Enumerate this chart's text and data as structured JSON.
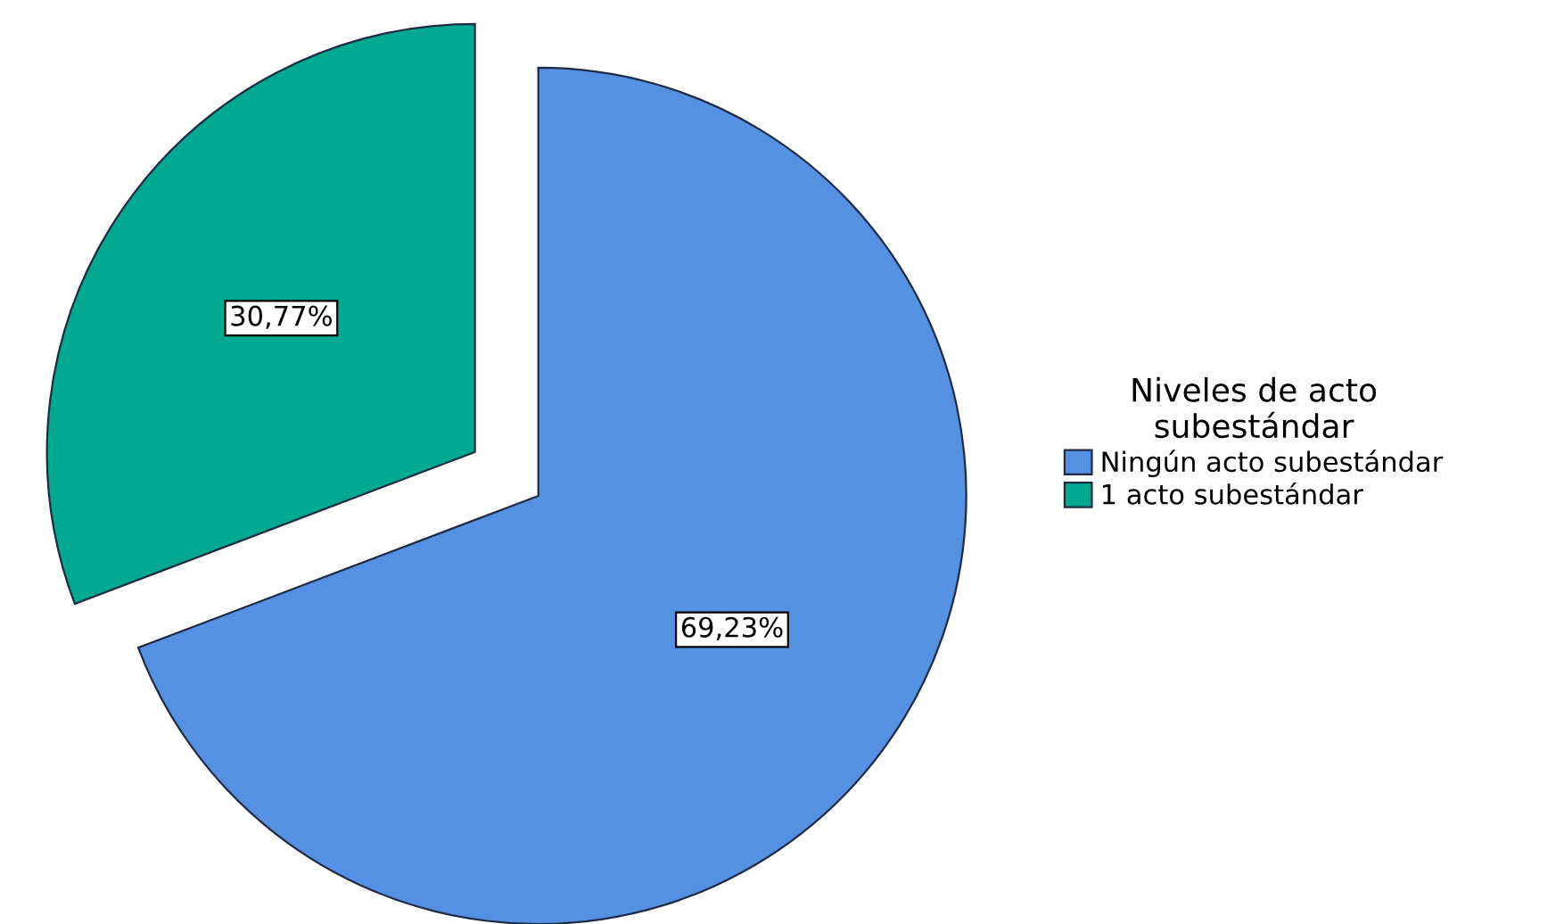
{
  "chart_data": {
    "type": "pie",
    "categories": [
      "Ningún acto subestándar",
      "1 acto subestándar"
    ],
    "values": [
      69.23,
      30.77
    ],
    "value_labels": [
      "69,23%",
      "30,77%"
    ],
    "colors": [
      "#5591e2",
      "#00a98f"
    ],
    "legend_title": "Niveles de acto\nsubestándar",
    "legend": "right"
  }
}
